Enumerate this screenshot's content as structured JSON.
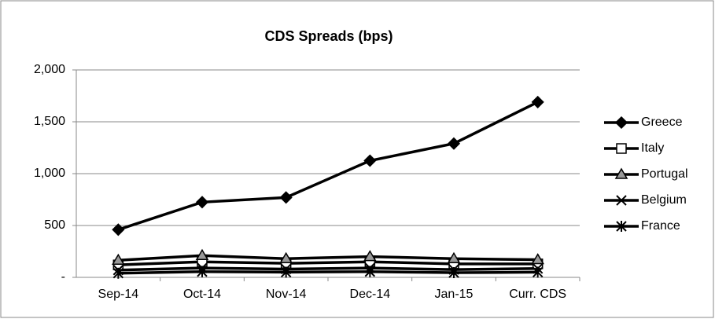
{
  "chart_data": {
    "type": "line",
    "title": "CDS Spreads (bps)",
    "categories": [
      "Sep-14",
      "Oct-14",
      "Nov-14",
      "Dec-14",
      "Jan-15",
      "Curr. CDS"
    ],
    "series": [
      {
        "name": "Greece",
        "color": "#000000",
        "marker": "diamond",
        "values": [
          460,
          725,
          770,
          1125,
          1290,
          1690
        ]
      },
      {
        "name": "Italy",
        "color": "#000000",
        "marker": "square",
        "values": [
          120,
          150,
          135,
          150,
          130,
          130
        ]
      },
      {
        "name": "Portugal",
        "color": "#000000",
        "marker": "triangle",
        "values": [
          165,
          210,
          180,
          200,
          180,
          170
        ]
      },
      {
        "name": "Belgium",
        "color": "#000000",
        "marker": "x",
        "values": [
          70,
          90,
          80,
          90,
          75,
          85
        ]
      },
      {
        "name": "France",
        "color": "#000000",
        "marker": "star",
        "values": [
          40,
          55,
          50,
          55,
          45,
          50
        ]
      }
    ],
    "ylim": [
      0,
      2000
    ],
    "yticks": [
      {
        "value": 0,
        "label": "-"
      },
      500,
      {
        "value": 1000,
        "label": "1,000"
      },
      {
        "value": 1500,
        "label": "1,500"
      },
      {
        "value": 2000,
        "label": "2,000"
      }
    ],
    "grid": true,
    "legend": "right"
  }
}
